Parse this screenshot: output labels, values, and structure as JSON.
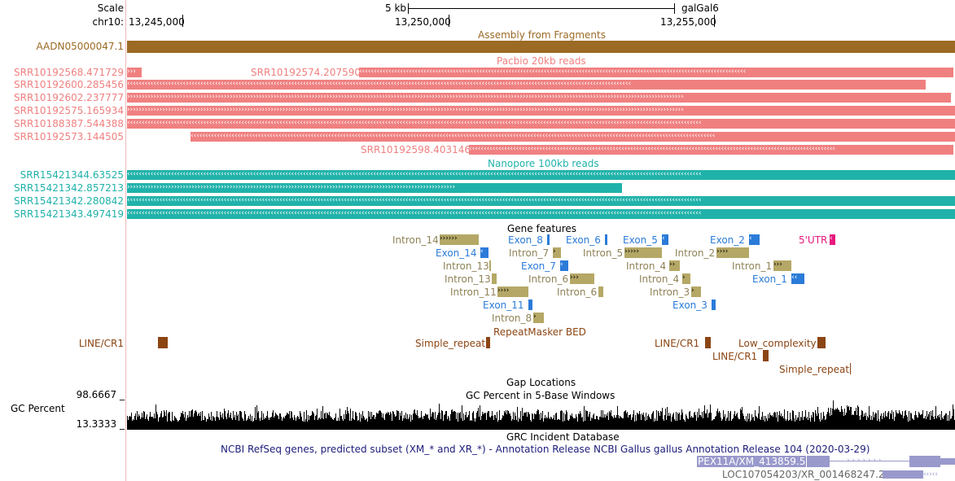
{
  "ruler": {
    "scale_label": "Scale",
    "chrom_label": "chr10:",
    "scale_text": "5 kb",
    "assembly": "galGal6",
    "positions": [
      "13,245,000",
      "13,250,000",
      "13,255,000"
    ]
  },
  "assembly_track": {
    "left_label": "AADN05000047.1",
    "title": "Assembly from Fragments",
    "color": "#9b6a24"
  },
  "pacbio": {
    "title": "Pacbio 20kb reads",
    "color": "#f08080",
    "labels": [
      "SRR10192568.471729",
      "SRR10192600.285456",
      "SRR10192602.237777",
      "SRR10192575.165934",
      "SRR10188387.544388",
      "SRR10192573.144505"
    ],
    "inline_labels": [
      "SRR10192574.207590",
      "SRR10192598.403146"
    ]
  },
  "nanopore": {
    "title": "Nanopore 100kb reads",
    "color": "#20b2aa",
    "labels": [
      "SRR15421344.63525",
      "SRR15421342.857213",
      "SRR15421342.280842",
      "SRR15421343.497419"
    ]
  },
  "gene_features": {
    "title": "Gene features",
    "intron_color": "#b5a866",
    "exon_color": "#2b7bd9",
    "utr_color": "#e5197f",
    "items": {
      "intron_14": "Intron_14",
      "exon_8": "Exon_8",
      "exon_6": "Exon_6",
      "exon_5": "Exon_5",
      "exon_2": "Exon_2",
      "utr5": "5'UTR",
      "exon_14": "Exon_14",
      "intron_7a": "Intron_7",
      "intron_5": "Intron_5",
      "intron_2": "Intron_2",
      "intron_13a": "Intron_13",
      "exon_7": "Exon_7",
      "intron_4a": "Intron_4",
      "intron_1": "Intron_1",
      "intron_13b": "Intron_13",
      "intron_6a": "Intron_6",
      "intron_4b": "Intron_4",
      "exon_1": "Exon_1",
      "intron_11": "Intron_11",
      "intron_6b": "Intron_6",
      "intron_3": "Intron_3",
      "exon_11": "Exon_11",
      "exon_3": "Exon_3",
      "intron_8": "Intron_8"
    }
  },
  "repeatmasker": {
    "title": "RepeatMasker BED",
    "color": "#8b4513",
    "items": {
      "line_cr1_left": "LINE/CR1",
      "simple_repeat_a": "Simple_repeat",
      "line_cr1_b": "LINE/CR1",
      "low_complexity": "Low_complexity",
      "line_cr1_c": "LINE/CR1",
      "simple_repeat_b": "Simple_repeat"
    }
  },
  "gap_track": {
    "title": "Gap Locations"
  },
  "gc_track": {
    "left_label": "GC Percent",
    "title": "GC Percent in 5-Base Windows",
    "max_label": "98.6667 _",
    "min_label": "13.3333 _"
  },
  "incident_track": {
    "title": "GRC Incident Database"
  },
  "refseq": {
    "title": "NCBI RefSeq genes, predicted subset (XM_* and XR_*) - Annotation Release NCBI Gallus gallus Annotation Release 104 (2020-03-29)",
    "gene1": "PEX11A/XM_413859.5",
    "gene2": "LOC107054203/XR_001468247.2",
    "color": "#1c1c7a",
    "feature_color": "#9999cc"
  }
}
